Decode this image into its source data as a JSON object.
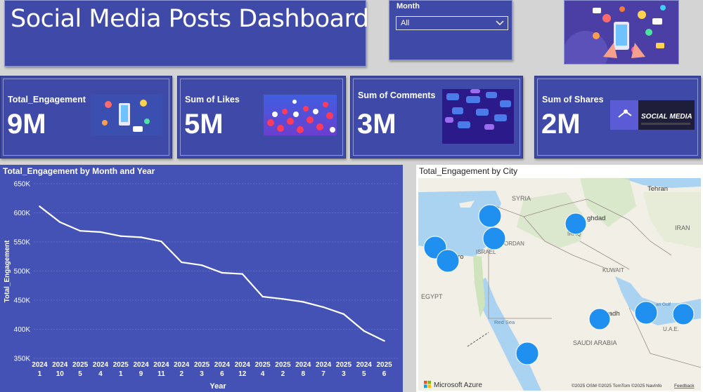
{
  "header": {
    "title": "Social Media Posts Dashboard"
  },
  "filter": {
    "label": "Month",
    "selected": "All"
  },
  "cards": [
    {
      "label": "Total_Engagement",
      "value": "9M"
    },
    {
      "label": "Sum of Likes",
      "value": "5M"
    },
    {
      "label": "Sum of Comments",
      "value": "3M"
    },
    {
      "label": "Sum of Shares",
      "value": "2M"
    }
  ],
  "thumbs": {
    "social_media_text": "SOCIAL MEDIA"
  },
  "chart_data": {
    "type": "line",
    "title": "Total_Engagement by Month and Year",
    "xlabel": "Year",
    "ylabel": "Total_Engagement",
    "ylim": [
      350000,
      650000
    ],
    "yticks": [
      "650K",
      "600K",
      "550K",
      "500K",
      "450K",
      "400K",
      "350K"
    ],
    "ytick_values": [
      650000,
      600000,
      550000,
      500000,
      450000,
      400000,
      350000
    ],
    "x_years": [
      "2024",
      "2024",
      "2025",
      "2024",
      "2025",
      "2024",
      "2024",
      "2024",
      "2025",
      "2024",
      "2024",
      "2025",
      "2025",
      "2024",
      "2024",
      "2025",
      "2024",
      "2025"
    ],
    "x_months": [
      "1",
      "10",
      "5",
      "4",
      "1",
      "9",
      "11",
      "2",
      "3",
      "6",
      "12",
      "4",
      "2",
      "8",
      "7",
      "3",
      "5",
      "6"
    ],
    "values": [
      611000,
      584000,
      569000,
      567000,
      560000,
      558000,
      551000,
      515000,
      510000,
      497000,
      495000,
      456000,
      452000,
      447000,
      438000,
      426000,
      397000,
      380000
    ]
  },
  "map": {
    "title": "Total_Engagement by City",
    "labels": [
      "Tehran",
      "SYRIA",
      "IRAQ",
      "ghdad",
      "ISRAEL",
      "JORDAN",
      "IRAN",
      "KUWAIT",
      "EGYPT",
      "iro",
      "Red Sea",
      "SAUDI ARABIA",
      "yadh",
      "an Gulf",
      "U.A.E."
    ],
    "brand": "Microsoft Azure",
    "attribution": "©2025 OSM  ©2025 TomTom  ©2025 NavInfo",
    "feedback": "Feedback",
    "colors": {
      "bubble": "#1f8ff0",
      "water": "#aad3f2",
      "land": "#f2efe6"
    }
  }
}
